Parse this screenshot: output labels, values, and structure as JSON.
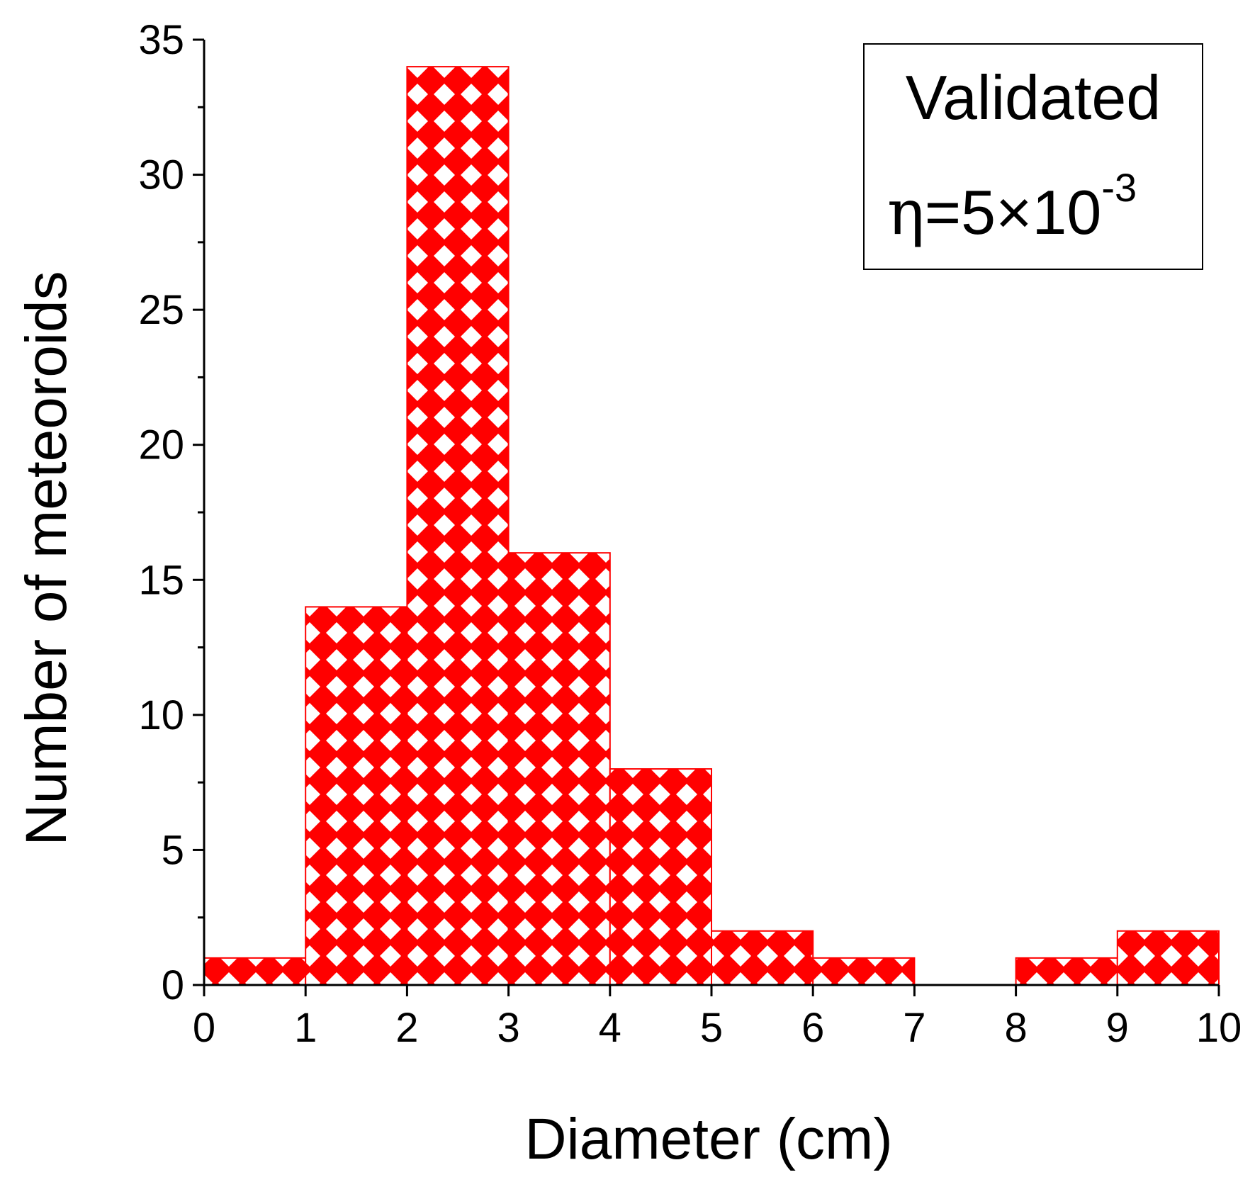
{
  "chart_data": {
    "type": "histogram",
    "bins": [
      {
        "from": 0,
        "to": 1,
        "count": 1
      },
      {
        "from": 1,
        "to": 2,
        "count": 14
      },
      {
        "from": 2,
        "to": 3,
        "count": 34
      },
      {
        "from": 3,
        "to": 4,
        "count": 16
      },
      {
        "from": 4,
        "to": 5,
        "count": 8
      },
      {
        "from": 5,
        "to": 6,
        "count": 2
      },
      {
        "from": 6,
        "to": 7,
        "count": 1
      },
      {
        "from": 7,
        "to": 8,
        "count": 0
      },
      {
        "from": 8,
        "to": 9,
        "count": 1
      },
      {
        "from": 9,
        "to": 10,
        "count": 2
      }
    ],
    "xlabel": "Diameter (cm)",
    "ylabel": "Number of meteoroids",
    "xlim": [
      0,
      10
    ],
    "ylim": [
      0,
      35
    ],
    "xticks": [
      "0",
      "1",
      "2",
      "3",
      "4",
      "5",
      "6",
      "7",
      "8",
      "9",
      "10"
    ],
    "yticks": [
      "0",
      "5",
      "10",
      "15",
      "20",
      "25",
      "30",
      "35"
    ],
    "grid": false,
    "fill": "crosshatch",
    "bar_color": "#ff0000",
    "annotation": {
      "line1": "Validated",
      "eta_symbol": "η",
      "eta_value": "=5×10",
      "eta_exponent": "-3",
      "placement": "top-right"
    }
  }
}
